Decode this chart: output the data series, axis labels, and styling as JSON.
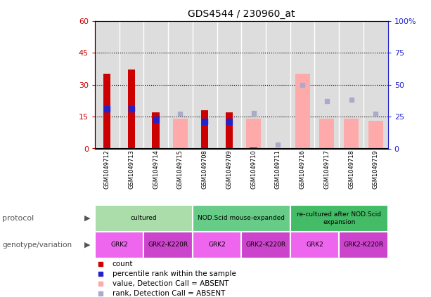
{
  "title": "GDS4544 / 230960_at",
  "samples": [
    "GSM1049712",
    "GSM1049713",
    "GSM1049714",
    "GSM1049715",
    "GSM1049708",
    "GSM1049709",
    "GSM1049710",
    "GSM1049711",
    "GSM1049716",
    "GSM1049717",
    "GSM1049718",
    "GSM1049719"
  ],
  "count_values": [
    35,
    37,
    17,
    0,
    18,
    17,
    0.5,
    0,
    0,
    0,
    0,
    0
  ],
  "percentile_rank": [
    31,
    31,
    23,
    0,
    21,
    21,
    0,
    0,
    0,
    0,
    0,
    0
  ],
  "pink_bar_values": [
    0,
    0,
    0,
    14,
    0,
    0,
    14,
    0,
    35,
    14,
    14,
    13
  ],
  "blue_square_values": [
    0,
    0,
    23,
    27,
    21,
    21,
    28,
    3,
    50,
    37,
    38,
    27
  ],
  "red_bar_color": "#cc0000",
  "blue_square_color": "#2222cc",
  "pink_bar_color": "#ffaaaa",
  "light_blue_sq_color": "#aaaacc",
  "ylim_left": [
    0,
    60
  ],
  "ylim_right": [
    0,
    100
  ],
  "yticks_left": [
    0,
    15,
    30,
    45,
    60
  ],
  "yticks_right": [
    0,
    25,
    50,
    75,
    100
  ],
  "ytick_labels_left": [
    "0",
    "15",
    "30",
    "45",
    "60"
  ],
  "ytick_labels_right": [
    "0",
    "25",
    "50",
    "75",
    "100%"
  ],
  "protocol_groups": [
    {
      "label": "cultured",
      "samples": [
        "GSM1049712",
        "GSM1049713",
        "GSM1049714",
        "GSM1049715"
      ],
      "color": "#aaddaa"
    },
    {
      "label": "NOD.Scid mouse-expanded",
      "samples": [
        "GSM1049708",
        "GSM1049709",
        "GSM1049710",
        "GSM1049711"
      ],
      "color": "#66cc88"
    },
    {
      "label": "re-cultured after NOD.Scid\nexpansion",
      "samples": [
        "GSM1049716",
        "GSM1049717",
        "GSM1049718",
        "GSM1049719"
      ],
      "color": "#44bb66"
    }
  ],
  "genotype_groups": [
    {
      "label": "GRK2",
      "samples": [
        "GSM1049712",
        "GSM1049713"
      ],
      "color": "#ee66ee",
      "text_color": "#000000"
    },
    {
      "label": "GRK2-K220R",
      "samples": [
        "GSM1049714",
        "GSM1049715"
      ],
      "color": "#cc44cc",
      "text_color": "#000000"
    },
    {
      "label": "GRK2",
      "samples": [
        "GSM1049708",
        "GSM1049709"
      ],
      "color": "#ee66ee",
      "text_color": "#000000"
    },
    {
      "label": "GRK2-K220R",
      "samples": [
        "GSM1049710",
        "GSM1049711"
      ],
      "color": "#cc44cc",
      "text_color": "#000000"
    },
    {
      "label": "GRK2",
      "samples": [
        "GSM1049716",
        "GSM1049717"
      ],
      "color": "#ee66ee",
      "text_color": "#000000"
    },
    {
      "label": "GRK2-K220R",
      "samples": [
        "GSM1049718",
        "GSM1049719"
      ],
      "color": "#cc44cc",
      "text_color": "#000000"
    }
  ],
  "legend_items": [
    {
      "label": "count",
      "color": "#cc0000"
    },
    {
      "label": "percentile rank within the sample",
      "color": "#2222cc"
    },
    {
      "label": "value, Detection Call = ABSENT",
      "color": "#ffaaaa"
    },
    {
      "label": "rank, Detection Call = ABSENT",
      "color": "#aaaacc"
    }
  ],
  "bar_width": 0.6,
  "square_size": 5,
  "bg_color": "#dddddd",
  "separator_color": "#ffffff",
  "grid_color": "#000000"
}
